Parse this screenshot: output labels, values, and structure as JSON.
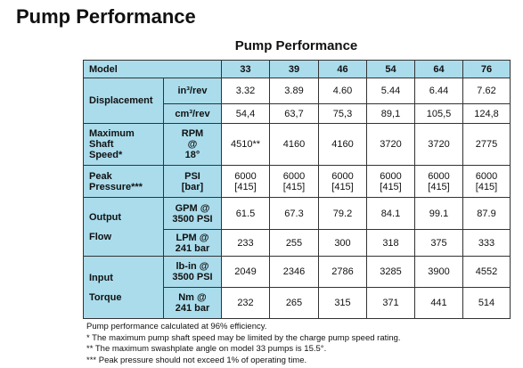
{
  "header": {
    "title": "Pump Performance"
  },
  "table": {
    "title": "Pump Performance",
    "columns": [
      "Model",
      "33",
      "39",
      "46",
      "54",
      "64",
      "76"
    ],
    "groups": [
      {
        "label": [
          "Displacement"
        ],
        "rows": [
          {
            "unit": [
              "in³/rev"
            ],
            "values": [
              [
                "3.32"
              ],
              [
                "3.89"
              ],
              [
                "4.60"
              ],
              [
                "5.44"
              ],
              [
                "6.44"
              ],
              [
                "7.62"
              ]
            ]
          },
          {
            "unit": [
              "cm³/rev"
            ],
            "values": [
              [
                "54,4"
              ],
              [
                "63,7"
              ],
              [
                "75,3"
              ],
              [
                "89,1"
              ],
              [
                "105,5"
              ],
              [
                "124,8"
              ]
            ]
          }
        ]
      },
      {
        "label": [
          "Maximum",
          "Shaft",
          "Speed*"
        ],
        "rows": [
          {
            "unit": [
              "RPM",
              "@",
              "18°"
            ],
            "values": [
              [
                "4510**"
              ],
              [
                "4160"
              ],
              [
                "4160"
              ],
              [
                "3720"
              ],
              [
                "3720"
              ],
              [
                "2775"
              ]
            ]
          }
        ]
      },
      {
        "label": [
          "Peak",
          "Pressure***"
        ],
        "rows": [
          {
            "unit": [
              "PSI",
              "[bar]"
            ],
            "values": [
              [
                "6000",
                "[415]"
              ],
              [
                "6000",
                "[415]"
              ],
              [
                "6000",
                "[415]"
              ],
              [
                "6000",
                "[415]"
              ],
              [
                "6000",
                "[415]"
              ],
              [
                "6000",
                "[415]"
              ]
            ]
          }
        ]
      },
      {
        "label": [
          "Output",
          "Flow"
        ],
        "rows": [
          {
            "unit": [
              "GPM @",
              "3500 PSI"
            ],
            "values": [
              [
                "61.5"
              ],
              [
                "67.3"
              ],
              [
                "79.2"
              ],
              [
                "84.1"
              ],
              [
                "99.1"
              ],
              [
                "87.9"
              ]
            ]
          },
          {
            "unit": [
              "LPM @",
              "241 bar"
            ],
            "values": [
              [
                "233"
              ],
              [
                "255"
              ],
              [
                "300"
              ],
              [
                "318"
              ],
              [
                "375"
              ],
              [
                "333"
              ]
            ]
          }
        ]
      },
      {
        "label": [
          "Input",
          "Torque"
        ],
        "rows": [
          {
            "unit": [
              "lb-in @",
              "3500 PSI"
            ],
            "values": [
              [
                "2049"
              ],
              [
                "2346"
              ],
              [
                "2786"
              ],
              [
                "3285"
              ],
              [
                "3900"
              ],
              [
                "4552"
              ]
            ]
          },
          {
            "unit": [
              "Nm @",
              "241 bar"
            ],
            "values": [
              [
                "232"
              ],
              [
                "265"
              ],
              [
                "315"
              ],
              [
                "371"
              ],
              [
                "441"
              ],
              [
                "514"
              ]
            ]
          }
        ]
      }
    ]
  },
  "notes": [
    "Pump performance calculated at 96% efficiency.",
    "*  The maximum pump shaft speed may be limited by the charge pump speed rating.",
    "**  The maximum swashplate angle on model 33 pumps is 15.5°.",
    "***  Peak pressure should not exceed 1% of operating time."
  ]
}
